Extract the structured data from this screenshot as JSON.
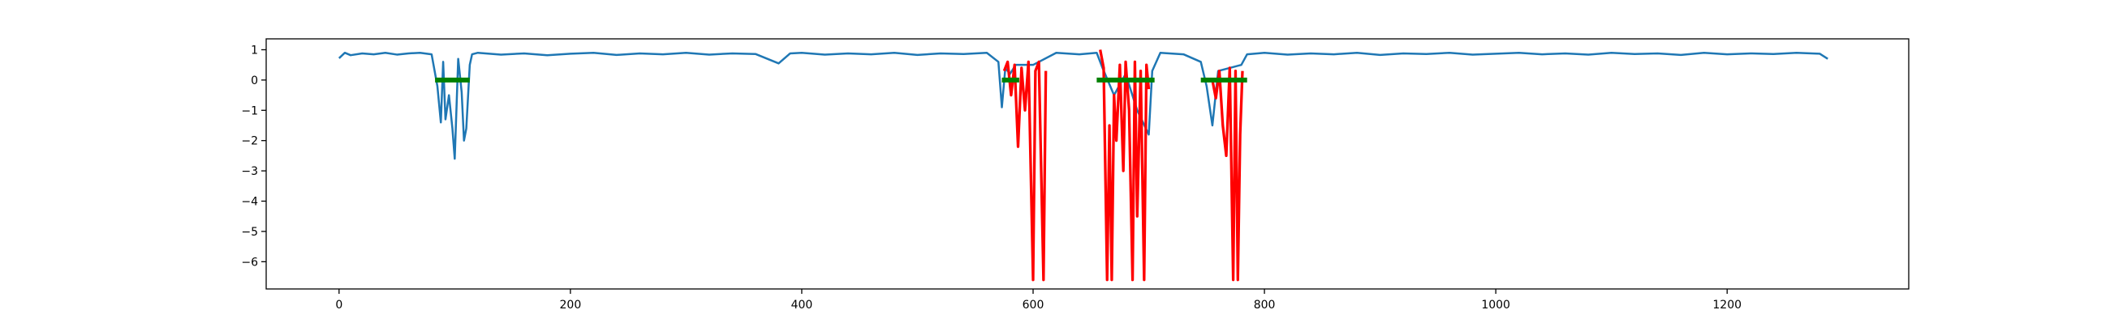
{
  "chart_data": {
    "type": "line",
    "xlim": [
      -63,
      1357
    ],
    "xticks": [
      0,
      200,
      400,
      600,
      800,
      1000,
      1200
    ],
    "ylim": [
      -6.9,
      1.36
    ],
    "yticks": [
      1,
      0,
      {
        "value": -1,
        "label": "−1"
      },
      {
        "value": -2,
        "label": "−2"
      },
      {
        "value": -3,
        "label": "−3"
      },
      {
        "value": -4,
        "label": "−4"
      },
      {
        "value": -5,
        "label": "−5"
      },
      {
        "value": -6,
        "label": "−6"
      }
    ],
    "series": [
      {
        "color": "#1f77b4",
        "width": 2.5,
        "x": [
          0,
          5,
          10,
          20,
          30,
          40,
          50,
          60,
          70,
          80,
          85,
          88,
          90,
          92,
          95,
          98,
          100,
          103,
          106,
          108,
          110,
          113,
          115,
          120,
          140,
          160,
          180,
          200,
          220,
          240,
          260,
          280,
          300,
          320,
          340,
          360,
          380,
          390,
          400,
          420,
          440,
          460,
          480,
          500,
          520,
          540,
          560,
          570,
          573,
          576,
          580,
          585,
          600,
          620,
          640,
          655,
          660,
          670,
          680,
          690,
          700,
          703,
          710,
          730,
          745,
          750,
          755,
          760,
          770,
          780,
          785,
          800,
          820,
          840,
          860,
          880,
          900,
          920,
          940,
          960,
          980,
          1000,
          1020,
          1040,
          1060,
          1080,
          1100,
          1120,
          1140,
          1160,
          1180,
          1200,
          1220,
          1240,
          1260,
          1280,
          1287
        ],
        "values": [
          0.72,
          0.9,
          0.82,
          0.88,
          0.85,
          0.9,
          0.84,
          0.88,
          0.9,
          0.85,
          -0.2,
          -1.4,
          0.6,
          -1.3,
          -0.5,
          -1.6,
          -2.6,
          0.7,
          -0.4,
          -2.0,
          -1.6,
          0.5,
          0.85,
          0.9,
          0.84,
          0.88,
          0.82,
          0.87,
          0.9,
          0.83,
          0.88,
          0.85,
          0.9,
          0.84,
          0.88,
          0.86,
          0.55,
          0.88,
          0.9,
          0.84,
          0.88,
          0.85,
          0.9,
          0.83,
          0.88,
          0.86,
          0.9,
          0.6,
          -0.9,
          0.4,
          0.2,
          0.5,
          0.5,
          0.9,
          0.85,
          0.9,
          0.4,
          -0.5,
          0.2,
          -1.0,
          -1.8,
          0.3,
          0.9,
          0.85,
          0.6,
          -0.2,
          -1.5,
          0.3,
          0.4,
          0.5,
          0.85,
          0.9,
          0.84,
          0.88,
          0.85,
          0.9,
          0.83,
          0.88,
          0.86,
          0.9,
          0.84,
          0.87,
          0.9,
          0.85,
          0.88,
          0.84,
          0.9,
          0.86,
          0.88,
          0.83,
          0.9,
          0.85,
          0.88,
          0.86,
          0.9,
          0.87,
          0.7
        ]
      },
      {
        "color": "#ff0000",
        "width": 3.3,
        "x": [
          575,
          578,
          581,
          584,
          587,
          590,
          593,
          596,
          600,
          602,
          605,
          607,
          609,
          611,
          612,
          658,
          661,
          664,
          666,
          668,
          670,
          672,
          675,
          678,
          680,
          683,
          686,
          688,
          690,
          693,
          696,
          698,
          700,
          720,
          755,
          758,
          761,
          764,
          767,
          770,
          773,
          775,
          777,
          779,
          781
        ],
        "values": [
          0.3,
          0.6,
          -0.5,
          0.5,
          -2.2,
          0.4,
          -1.0,
          0.6,
          -6.6,
          0.3,
          0.6,
          -3.0,
          -6.6,
          0.3,
          null,
          1.0,
          0.4,
          -6.6,
          -1.5,
          -6.6,
          -0.5,
          -2.0,
          0.5,
          -3.0,
          0.6,
          -1.0,
          -6.6,
          0.6,
          -4.5,
          0.3,
          -6.6,
          0.5,
          -0.3,
          null,
          0.0,
          -0.6,
          0.3,
          -1.5,
          -2.5,
          0.4,
          -6.6,
          0.3,
          -6.6,
          -1.8,
          0.3
        ]
      },
      {
        "color": "#008000",
        "width": 6,
        "x": [
          83,
          113,
          114,
          573,
          588,
          589,
          655,
          705,
          706,
          745,
          785
        ],
        "values": [
          0,
          0,
          null,
          0,
          0,
          null,
          0,
          0,
          null,
          0,
          0
        ]
      }
    ]
  }
}
